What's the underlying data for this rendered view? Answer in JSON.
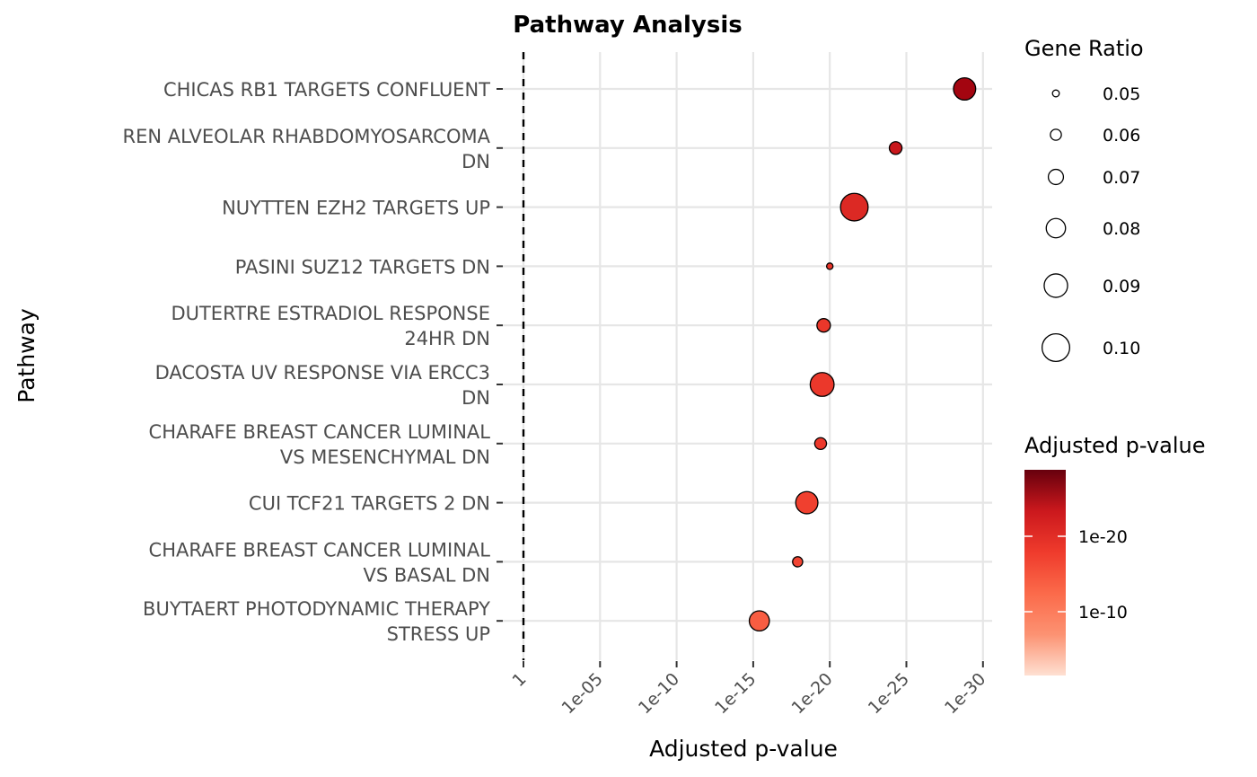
{
  "chart_data": {
    "type": "scatter",
    "title": "Pathway Analysis",
    "xlabel": "Adjusted p-value",
    "ylabel": "Pathway",
    "x_scale": "-log10 (reversed)",
    "x_ticks": [
      "1",
      "1e-05",
      "1e-10",
      "1e-15",
      "1e-20",
      "1e-25",
      "1e-30"
    ],
    "x_tick_exponents": [
      0,
      5,
      10,
      15,
      20,
      25,
      30
    ],
    "reference_line": "1",
    "grid": true,
    "points": [
      {
        "pathway": [
          "CHICAS RB1 TARGETS CONFLUENT"
        ],
        "p_adj": "1e-28.8",
        "p_exp": 28.8,
        "gene_ratio": 0.087
      },
      {
        "pathway": [
          "REN ALVEOLAR RHABDOMYOSARCOMA",
          "DN"
        ],
        "p_adj": "1e-24.3",
        "p_exp": 24.3,
        "gene_ratio": 0.064
      },
      {
        "pathway": [
          "NUYTTEN EZH2 TARGETS UP"
        ],
        "p_adj": "1e-21.6",
        "p_exp": 21.6,
        "gene_ratio": 0.1
      },
      {
        "pathway": [
          "PASINI SUZ12 TARGETS DN"
        ],
        "p_adj": "1e-20",
        "p_exp": 20.0,
        "gene_ratio": 0.049
      },
      {
        "pathway": [
          "DUTERTRE ESTRADIOL RESPONSE",
          "24HR DN"
        ],
        "p_adj": "1e-19.6",
        "p_exp": 19.6,
        "gene_ratio": 0.066
      },
      {
        "pathway": [
          "DACOSTA UV RESPONSE VIA ERCC3",
          "DN"
        ],
        "p_adj": "1e-19.5",
        "p_exp": 19.5,
        "gene_ratio": 0.091
      },
      {
        "pathway": [
          "CHARAFE BREAST CANCER LUMINAL",
          "VS MESENCHYMAL DN"
        ],
        "p_adj": "1e-19.4",
        "p_exp": 19.4,
        "gene_ratio": 0.062
      },
      {
        "pathway": [
          "CUI TCF21 TARGETS 2 DN"
        ],
        "p_adj": "1e-18.5",
        "p_exp": 18.5,
        "gene_ratio": 0.087
      },
      {
        "pathway": [
          "CHARAFE BREAST CANCER LUMINAL",
          "VS BASAL DN"
        ],
        "p_adj": "1e-17.9",
        "p_exp": 17.9,
        "gene_ratio": 0.058
      },
      {
        "pathway": [
          "BUYTAERT PHOTODYNAMIC THERAPY",
          "STRESS UP"
        ],
        "p_adj": "1e-15.4",
        "p_exp": 15.4,
        "gene_ratio": 0.082
      }
    ],
    "size_legend": {
      "title": "Gene Ratio",
      "labels": [
        "0.05",
        "0.06",
        "0.07",
        "0.08",
        "0.09",
        "0.10"
      ],
      "values": [
        0.05,
        0.06,
        0.07,
        0.08,
        0.09,
        0.1
      ]
    },
    "color_legend": {
      "title": "Adjusted p-value",
      "labels": [
        "1e-20",
        "1e-10"
      ],
      "exponents": [
        20,
        10
      ],
      "colors": [
        "#67000d",
        "#cb181d",
        "#ef3b2c",
        "#fb6a4a",
        "#fc9272",
        "#fee0d2"
      ]
    }
  }
}
